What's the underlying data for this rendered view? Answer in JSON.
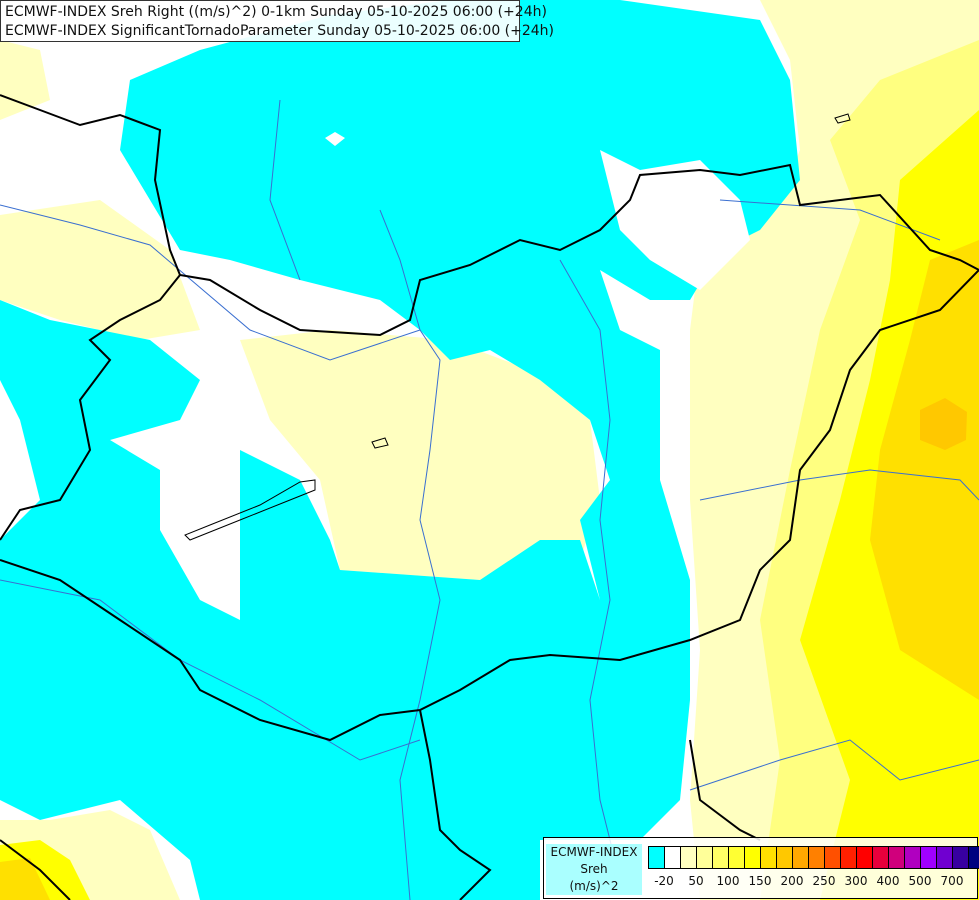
{
  "header": {
    "line1": "ECMWF-INDEX Sreh Right ((m/s)^2) 0-1km Sunday 05-10-2025 06:00 (+24h)",
    "line2": "ECMWF-INDEX SignificantTornadoParameter Sunday 05-10-2025 06:00 (+24h)"
  },
  "legend": {
    "label_line1": "ECMWF-INDEX",
    "label_line2": "Sreh",
    "label_line3": "(m/s)^2",
    "colors": [
      "#00ffff",
      "#ffffff",
      "#ffffc0",
      "#ffff99",
      "#ffff66",
      "#ffff33",
      "#ffff00",
      "#ffe000",
      "#ffc800",
      "#ffa800",
      "#ff8000",
      "#ff5000",
      "#ff2000",
      "#ff0000",
      "#e8003c",
      "#d0007c",
      "#b000c0",
      "#a000ff",
      "#7000d0",
      "#3800a0",
      "#000080"
    ],
    "ticks": [
      "-20",
      "50",
      "100",
      "150",
      "200",
      "250",
      "300",
      "400",
      "500",
      "700"
    ]
  },
  "map": {
    "colors": {
      "cyan": "#00ffff",
      "pale_yellow": "#ffffc0",
      "light_yellow": "#ffff80",
      "yellow": "#ffff00",
      "gold": "#ffe000",
      "orange": "#ffc800",
      "border": "#000000",
      "river": "#3a6fd0"
    }
  }
}
